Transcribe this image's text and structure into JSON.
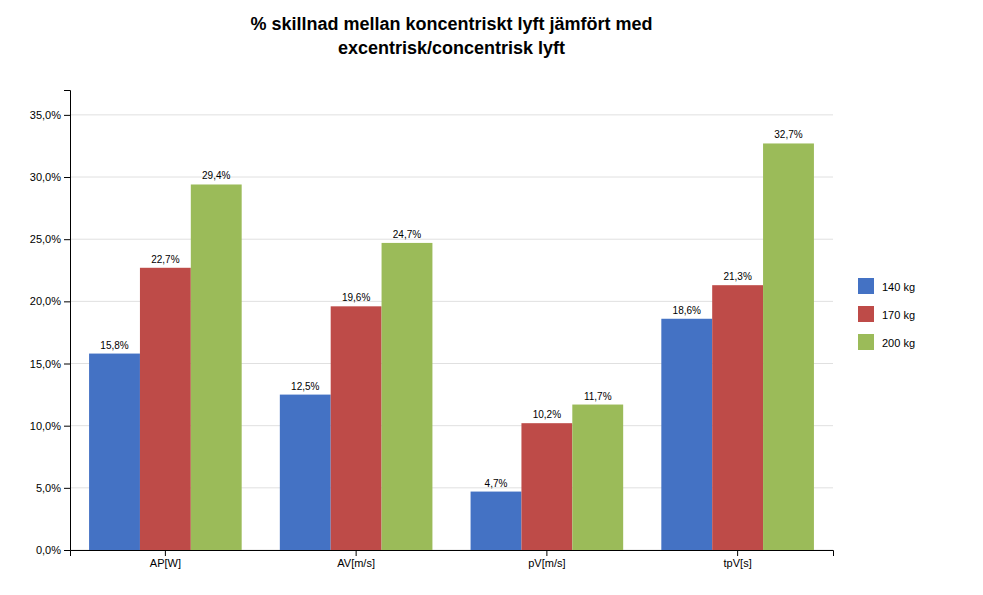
{
  "chart_data": {
    "type": "bar",
    "title": "% skillnad mellan koncentriskt lyft jämfört med\nexcentrisk/concentrisk lyft",
    "categories": [
      "AP[W]",
      "AV[m/s]",
      "pV[m/s]",
      "tpV[s]"
    ],
    "series": [
      {
        "name": "140 kg",
        "color": "#4472C4",
        "values": [
          15.8,
          12.5,
          4.7,
          18.6
        ],
        "value_labels": [
          "15,8%",
          "12,5%",
          "4,7%",
          "18,6%"
        ]
      },
      {
        "name": "170 kg",
        "color": "#BE4B48",
        "values": [
          22.7,
          19.6,
          10.2,
          21.3
        ],
        "value_labels": [
          "22,7%",
          "19,6%",
          "10,2%",
          "21,3%"
        ]
      },
      {
        "name": "200 kg",
        "color": "#9BBB59",
        "values": [
          29.4,
          24.7,
          11.7,
          32.7
        ],
        "value_labels": [
          "29,4%",
          "24,7%",
          "11,7%",
          "32,7%"
        ]
      }
    ],
    "ylim": [
      0,
      37
    ],
    "yticks": [
      {
        "value": 0.0,
        "label": "0,0%"
      },
      {
        "value": 5.0,
        "label": "5,0%"
      },
      {
        "value": 10.0,
        "label": "10,0%"
      },
      {
        "value": 15.0,
        "label": "15,0%"
      },
      {
        "value": 20.0,
        "label": "20,0%"
      },
      {
        "value": 25.0,
        "label": "25,0%"
      },
      {
        "value": 30.0,
        "label": "30,0%"
      },
      {
        "value": 35.0,
        "label": "35,0%"
      }
    ],
    "grid": true,
    "legend": "right",
    "data_labels": true
  }
}
